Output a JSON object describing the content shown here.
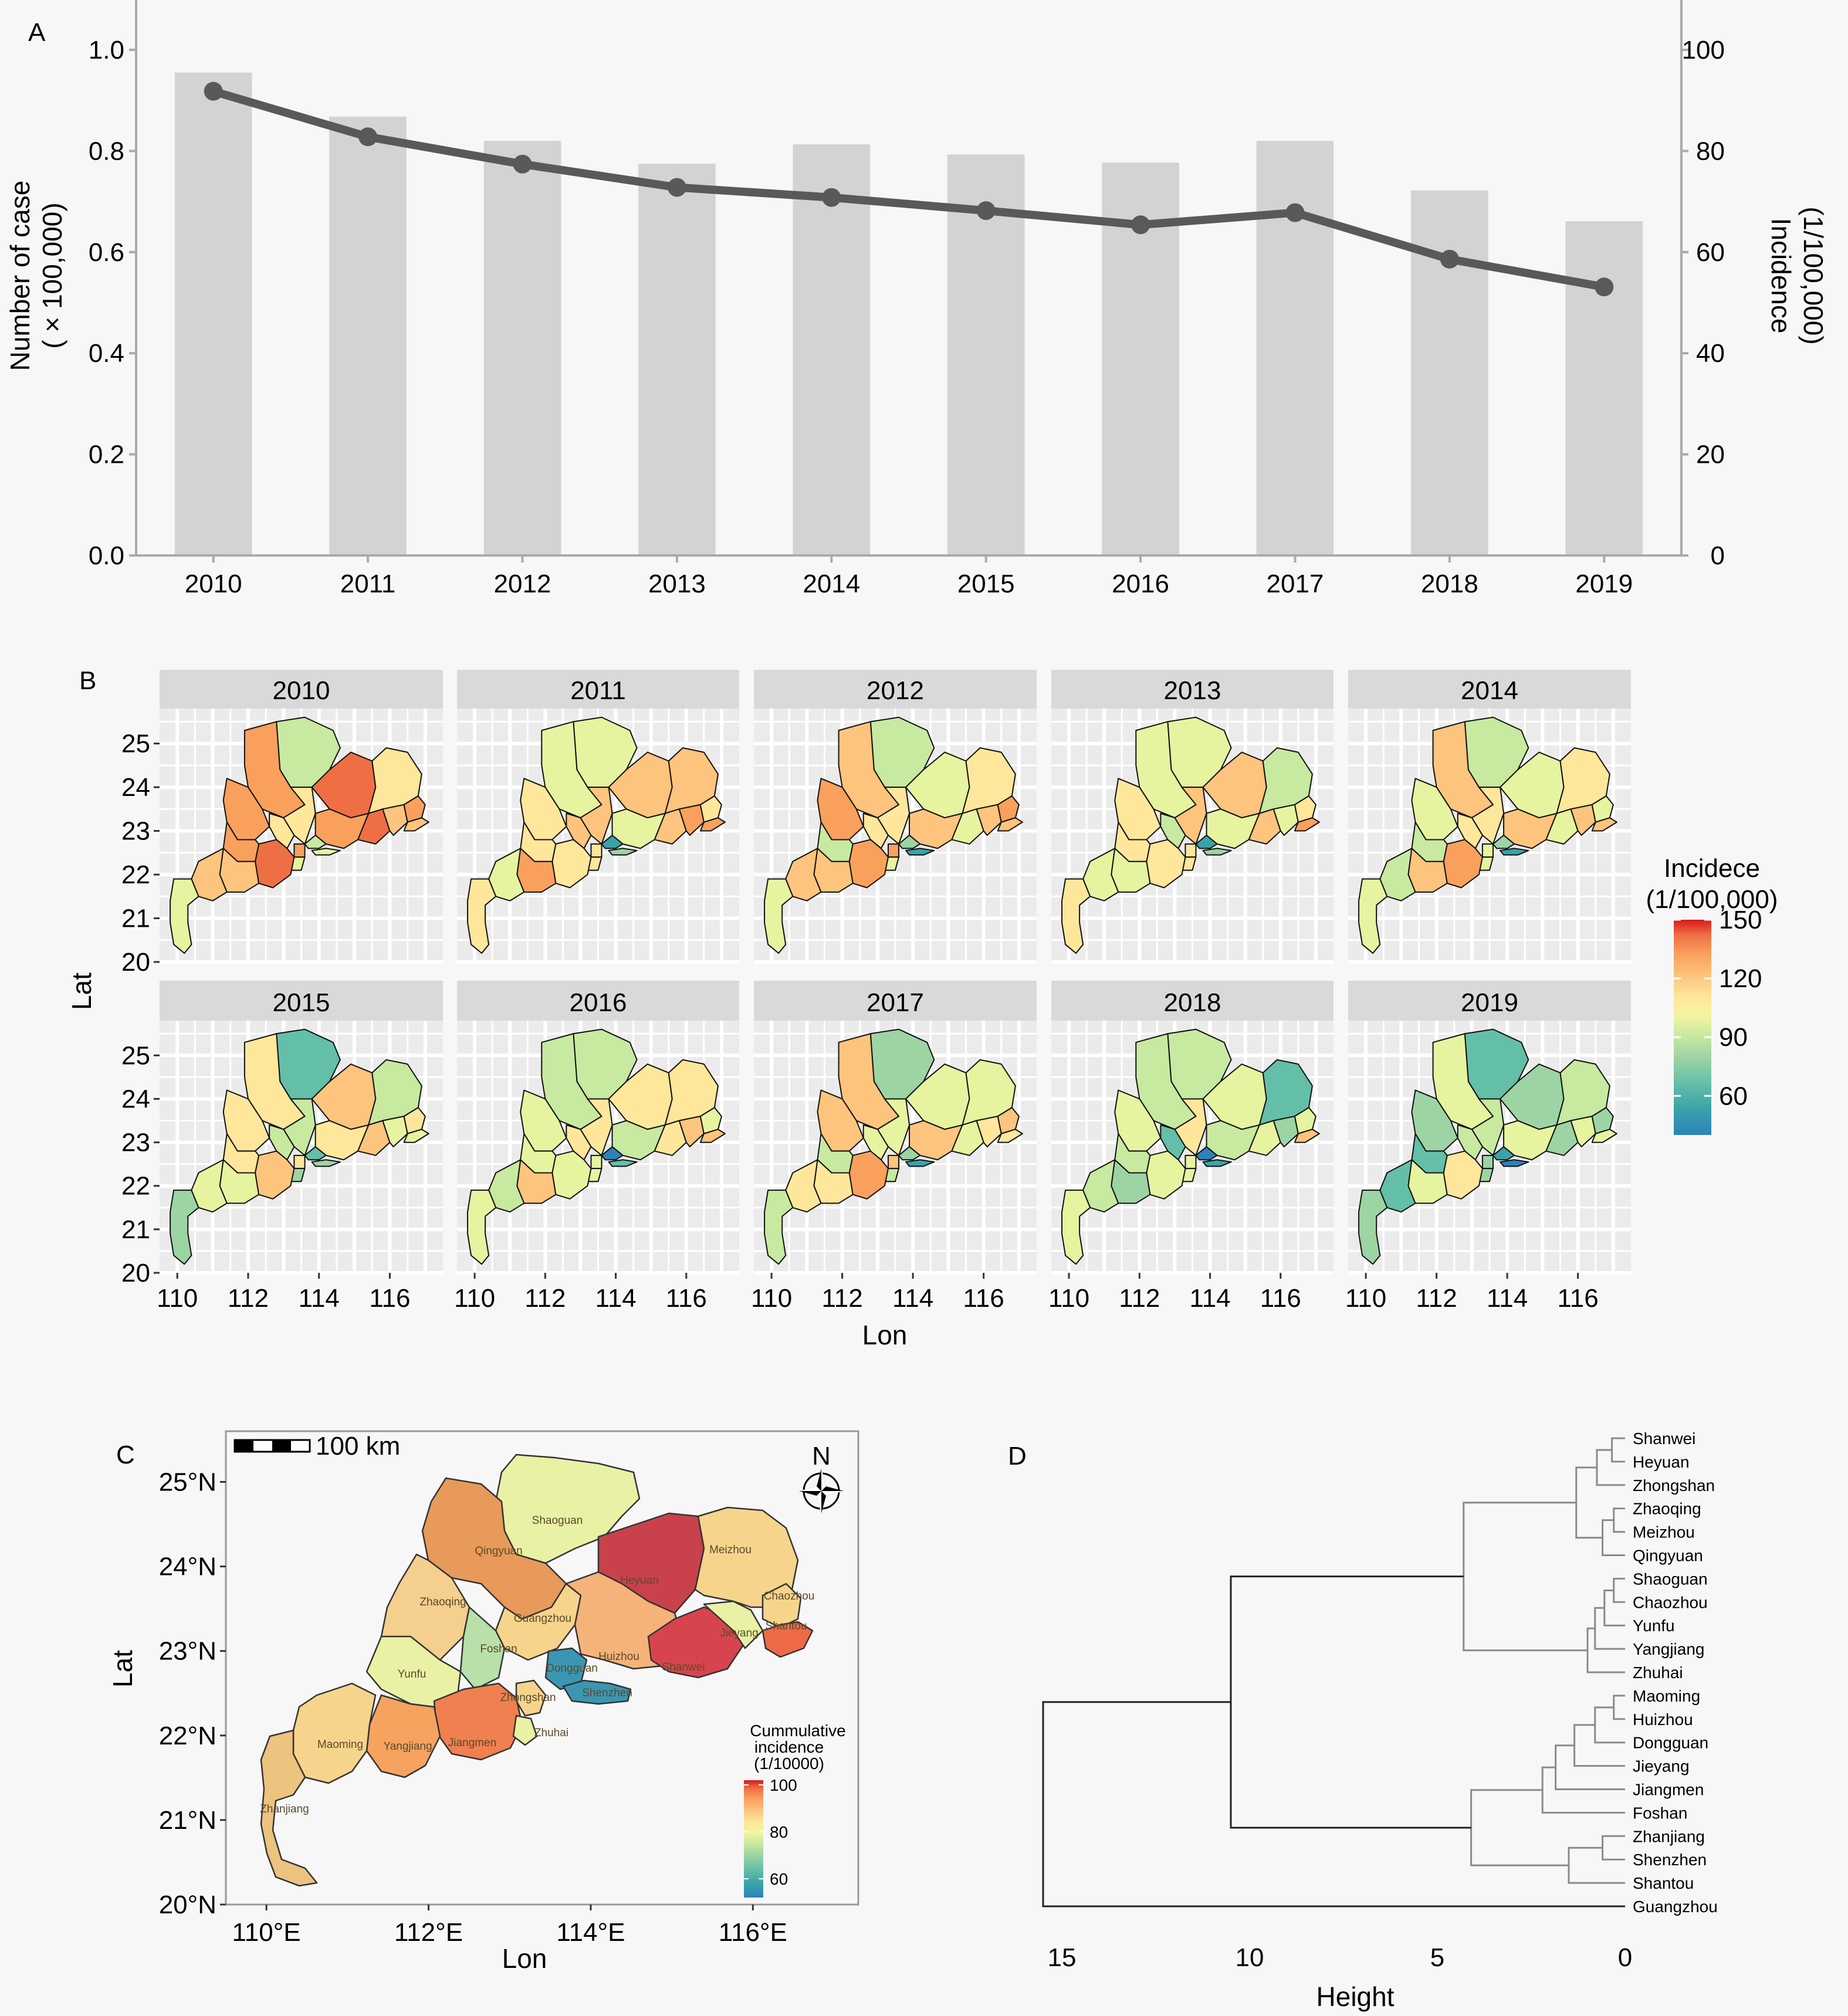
{
  "panel_labels": {
    "a": "A",
    "b": "B",
    "c": "C",
    "d": "D"
  },
  "colors": {
    "bar": "#d3d3d3",
    "line": "#595959",
    "axis": "#aaaaaa",
    "panel_bg": "#ebebeb",
    "grid": "#ffffff",
    "strip": "#d9d9d9",
    "spectral": [
      "#2b83ba",
      "#3ba3a8",
      "#64bfa8",
      "#9dd4a4",
      "#c7e9a0",
      "#e6f4a0",
      "#fee79b",
      "#fdc47d",
      "#f9a05c",
      "#ef6f45",
      "#d7191c"
    ]
  },
  "panel_a": {
    "y_left_label": "Number of case",
    "y_left_label2": "( × 100,000)",
    "y_right_label": "Incidence",
    "y_right_label2": "(1/100,000)",
    "y_left_ticks": [
      "0.0",
      "0.2",
      "0.4",
      "0.6",
      "0.8",
      "1.0"
    ],
    "y_right_ticks": [
      "0",
      "20",
      "40",
      "60",
      "80",
      "100"
    ]
  },
  "panel_b": {
    "xlabel": "Lon",
    "ylabel": "Lat",
    "facet_years": [
      "2010",
      "2011",
      "2012",
      "2013",
      "2014",
      "2015",
      "2016",
      "2017",
      "2018",
      "2019"
    ],
    "x_ticks": [
      "110",
      "112",
      "114",
      "116"
    ],
    "y_ticks": [
      "20",
      "21",
      "22",
      "23",
      "24",
      "25"
    ],
    "legend_title": "Incidece",
    "legend_title2": "(1/100,000)",
    "legend_ticks": [
      "150",
      "120",
      "90",
      "60"
    ]
  },
  "panel_c": {
    "scalebar_label": "100 km",
    "north_label": "N",
    "xlabel": "Lon",
    "ylabel": "Lat",
    "x_ticks": [
      "110°E",
      "112°E",
      "114°E",
      "116°E"
    ],
    "y_ticks": [
      "20°N",
      "21°N",
      "22°N",
      "23°N",
      "24°N",
      "25°N"
    ],
    "legend_title": [
      "Cummulative",
      "incidence",
      "(1/10000)"
    ],
    "legend_ticks": [
      "100",
      "80",
      "60"
    ],
    "city_labels": [
      "Shaoguan",
      "Qingyuan",
      "Meizhou",
      "Zhaoqing",
      "Guangzhou",
      "Foshan",
      "Heyuan",
      "Huizhou",
      "Chaozhou",
      "Jieyang",
      "Shantou",
      "Shanwei",
      "Yunfu",
      "Zhongshan",
      "Maoming",
      "Yangjiang",
      "Jiangmen",
      "Zhuhai",
      "Zhanjiang",
      "Dongguan",
      "Shenzhen"
    ]
  },
  "chart_data": [
    {
      "type": "bar",
      "panel": "A",
      "categories": [
        "2010",
        "2011",
        "2012",
        "2013",
        "2014",
        "2015",
        "2016",
        "2017",
        "2018",
        "2019"
      ],
      "series": [
        {
          "name": "Number of case",
          "axis": "left",
          "values": [
            0.955,
            0.868,
            0.82,
            0.775,
            0.813,
            0.793,
            0.777,
            0.82,
            0.722,
            0.661
          ]
        },
        {
          "name": "Incidence",
          "axis": "right",
          "type": "line",
          "values": [
            91.8,
            82.8,
            77.4,
            72.8,
            70.8,
            68.2,
            65.4,
            67.8,
            58.6,
            53.1
          ]
        }
      ],
      "ylim": [
        0,
        1.0
      ],
      "y2lim": [
        0,
        100
      ]
    },
    {
      "type": "heatmap",
      "panel": "B",
      "facets": [
        "2010",
        "2011",
        "2012",
        "2013",
        "2014",
        "2015",
        "2016",
        "2017",
        "2018",
        "2019"
      ],
      "xlim": [
        109.5,
        117.5
      ],
      "ylim": [
        20,
        25.8
      ],
      "colorbar": {
        "min": 40,
        "max": 150
      }
    },
    {
      "type": "heatmap",
      "panel": "C",
      "xlim": [
        109.5,
        117.3
      ],
      "ylim": [
        20,
        25.6
      ],
      "colorbar": {
        "min": 52,
        "max": 102
      }
    },
    {
      "type": "dendrogram",
      "panel": "D",
      "xlabel": "Height",
      "x_ticks": [
        "15",
        "10",
        "5",
        "0"
      ],
      "xlim": [
        16.5,
        0
      ],
      "leaves": [
        "Shanwei",
        "Heyuan",
        "Zhongshan",
        "Zhaoqing",
        "Meizhou",
        "Qingyuan",
        "Shaoguan",
        "Chaozhou",
        "Yunfu",
        "Yangjiang",
        "Zhuhai",
        "Maoming",
        "Huizhou",
        "Dongguan",
        "Jieyang",
        "Jiangmen",
        "Foshan",
        "Zhanjiang",
        "Shenzhen",
        "Shantou",
        "Guangzhou"
      ]
    }
  ]
}
